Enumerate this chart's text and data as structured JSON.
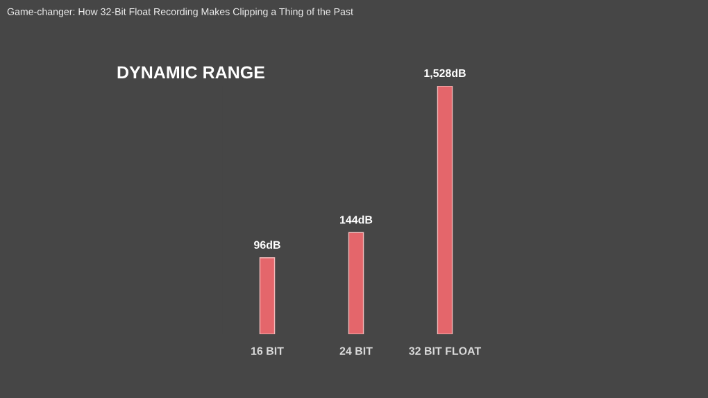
{
  "chart_data": {
    "type": "bar",
    "title": "DYNAMIC RANGE",
    "annotations": [
      "Game-changer: How 32-Bit Float Recording Makes Clipping a Thing of the Past"
    ],
    "categories": [
      "16 BIT",
      "24 BIT",
      "32 BIT FLOAT"
    ],
    "values": [
      96,
      144,
      1528
    ],
    "value_labels": [
      "96dB",
      "144dB",
      "1,528dB"
    ],
    "color": "#e4666b",
    "log": true,
    "ylim": [
      28,
      1528
    ],
    "tick_labels": "x"
  }
}
